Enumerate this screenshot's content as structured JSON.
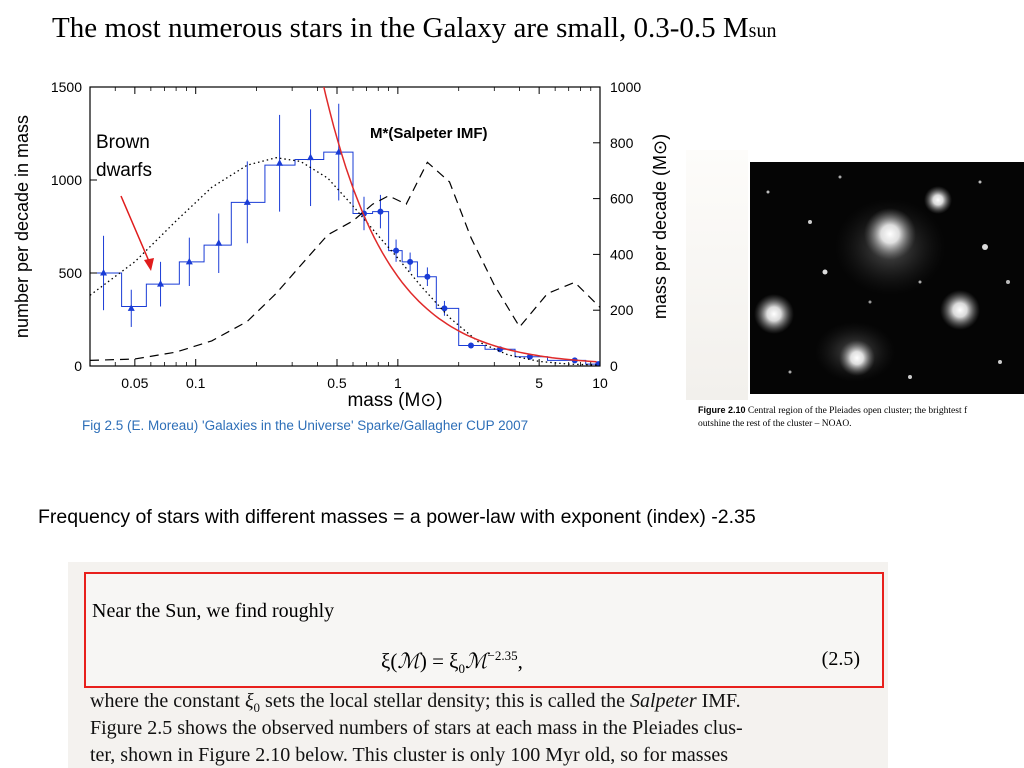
{
  "slide": {
    "title_main": "The most numerous stars in the Galaxy are small, 0.3-0.5 M",
    "title_sub": "sun",
    "frequency_text": "Frequency of stars with different masses = a power-law with exponent (index) -2.35"
  },
  "chart_data": {
    "type": "line",
    "xlabel": "mass (M⊙)",
    "ylabel_left": "number per decade in mass",
    "ylabel_right": "mass per decade (M⊙)",
    "x_scale": "log",
    "xlim": [
      0.03,
      10
    ],
    "ylim_left": [
      0,
      1500
    ],
    "ylim_right": [
      0,
      1000
    ],
    "x_ticks": [
      "0.05",
      "0.1",
      "0.5",
      "1",
      "5",
      "10"
    ],
    "x_tick_values": [
      0.05,
      0.1,
      0.5,
      1,
      5,
      10
    ],
    "y_ticks_left": [
      0,
      500,
      1000,
      1500
    ],
    "y_ticks_right": [
      0,
      200,
      400,
      600,
      800,
      1000
    ],
    "annotations": {
      "brown_dwarfs": "Brown dwarfs",
      "brown_dwarfs_line1": "Brown",
      "brown_dwarfs_line2": "dwarfs",
      "salpeter": "M*(Salpeter IMF)"
    },
    "series": [
      {
        "style": "points-with-error-bars",
        "color": "#1a3cd6",
        "x": [
          0.035,
          0.048,
          0.067,
          0.093,
          0.13,
          0.18,
          0.26,
          0.37,
          0.51,
          0.68,
          0.82,
          0.98,
          1.15,
          1.4,
          1.7,
          2.3,
          3.2,
          4.5,
          7.5,
          9.8
        ],
        "y": [
          500,
          310,
          440,
          560,
          660,
          880,
          1090,
          1120,
          1150,
          820,
          830,
          620,
          560,
          480,
          310,
          110,
          90,
          50,
          30,
          10
        ],
        "err": [
          200,
          100,
          120,
          130,
          160,
          220,
          260,
          260,
          260,
          90,
          90,
          60,
          50,
          50,
          40,
          15,
          10,
          8,
          5,
          3
        ]
      },
      {
        "style": "histogram",
        "color": "#1a3cd6",
        "bins": [
          [
            0.03,
            0.043,
            500
          ],
          [
            0.043,
            0.057,
            320
          ],
          [
            0.057,
            0.083,
            440
          ],
          [
            0.083,
            0.11,
            560
          ],
          [
            0.11,
            0.15,
            650
          ],
          [
            0.15,
            0.22,
            880
          ],
          [
            0.22,
            0.31,
            1080
          ],
          [
            0.31,
            0.43,
            1110
          ],
          [
            0.43,
            0.6,
            1150
          ],
          [
            0.6,
            0.75,
            820
          ],
          [
            0.75,
            0.9,
            830
          ],
          [
            0.9,
            1.05,
            620
          ],
          [
            1.05,
            1.25,
            560
          ],
          [
            1.25,
            1.55,
            480
          ],
          [
            1.55,
            2.0,
            310
          ],
          [
            2.0,
            2.7,
            110
          ],
          [
            2.7,
            3.8,
            90
          ],
          [
            3.8,
            5.5,
            50
          ],
          [
            5.5,
            8.5,
            30
          ],
          [
            8.5,
            10,
            10
          ]
        ]
      },
      {
        "style": "dotted-fit",
        "color": "#000000",
        "x": [
          0.03,
          0.05,
          0.08,
          0.12,
          0.18,
          0.25,
          0.33,
          0.45,
          0.6,
          0.8,
          1.0,
          1.3,
          1.8,
          2.5,
          3.5,
          5,
          7,
          10
        ],
        "y": [
          380,
          560,
          780,
          960,
          1080,
          1120,
          1100,
          1010,
          860,
          700,
          580,
          430,
          260,
          130,
          60,
          25,
          10,
          5
        ]
      },
      {
        "style": "dashed",
        "axis": "right",
        "color": "#000000",
        "x": [
          0.03,
          0.05,
          0.08,
          0.12,
          0.18,
          0.25,
          0.33,
          0.45,
          0.6,
          0.75,
          0.9,
          1.1,
          1.4,
          1.8,
          2.3,
          3.0,
          4.0,
          5.5,
          7.5,
          10
        ],
        "y": [
          20,
          25,
          50,
          90,
          160,
          260,
          360,
          470,
          520,
          580,
          610,
          580,
          730,
          660,
          460,
          290,
          140,
          260,
          300,
          210
        ]
      },
      {
        "style": "salpeter-power-law",
        "color": "#e02a2a",
        "exponent": -1.35,
        "x": [
          0.42,
          0.5,
          0.6,
          0.7,
          0.85,
          1.0,
          1.3,
          1.7,
          2.2,
          3,
          4,
          5.5,
          7.5,
          10
        ],
        "y": [
          1550,
          1225,
          960,
          780,
          600,
          490,
          340,
          240,
          170,
          110,
          75,
          50,
          33,
          22
        ]
      }
    ]
  },
  "chart_caption": "Fig 2.5 (E. Moreau) 'Galaxies in the Universe' Sparke/Gallagher CUP 2007",
  "pleiades": {
    "caption_label": "Figure 2.10",
    "caption_line1": "Central region of the Pleiades open cluster; the brightest f",
    "caption_line2": "outshine the rest of the cluster – NOAO."
  },
  "book_excerpt": {
    "near_sun": "Near the Sun, we find roughly",
    "equation_parts": [
      "ξ(",
      "ℳ",
      ") = ξ",
      "0",
      "ℳ",
      "−2.35",
      ","
    ],
    "equation_number": "(2.5)",
    "line1_a": "where the constant ",
    "line1_xi": "ξ",
    "line1_sub": "0",
    "line1_b": " sets the local stellar density; this is called the ",
    "line1_salpeter": "Salpeter",
    "line1_c": " IMF.",
    "line2": "Figure 2.5 shows the observed numbers of stars at each mass in the Pleiades clus-",
    "line3": "ter, shown in Figure 2.10 below. This cluster is only 100 Myr old, so for masses"
  }
}
